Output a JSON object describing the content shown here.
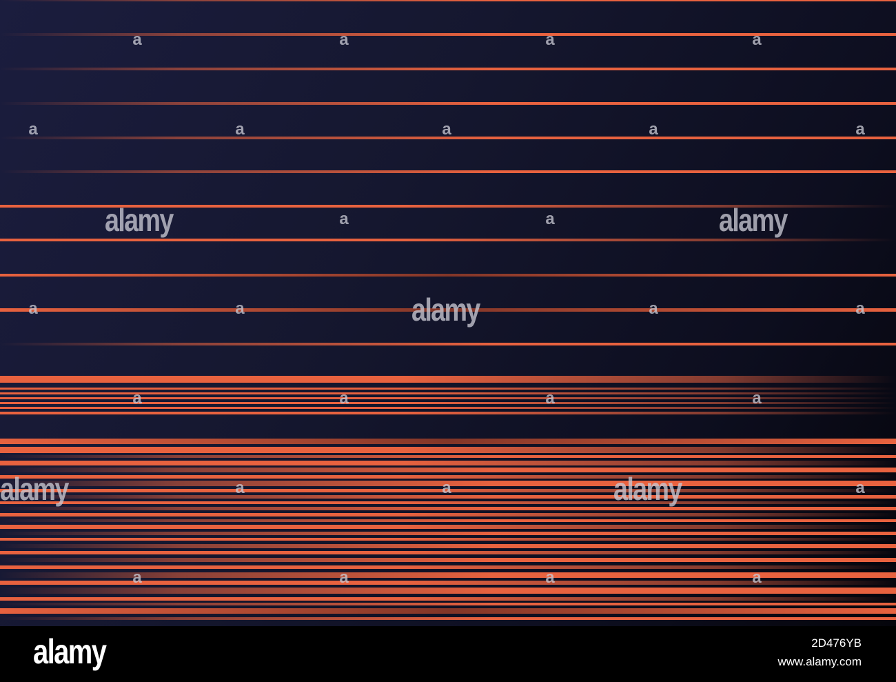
{
  "watermark": {
    "brand": "alamy",
    "small_mark": "a"
  },
  "footer": {
    "logo": "alamy",
    "image_id": "2D476YB",
    "url": "www.alamy.com"
  },
  "colors": {
    "background_light": "#1b1d3e",
    "background_dark": "#05050b",
    "stripe": "#e8623f",
    "footer": "#000000"
  }
}
